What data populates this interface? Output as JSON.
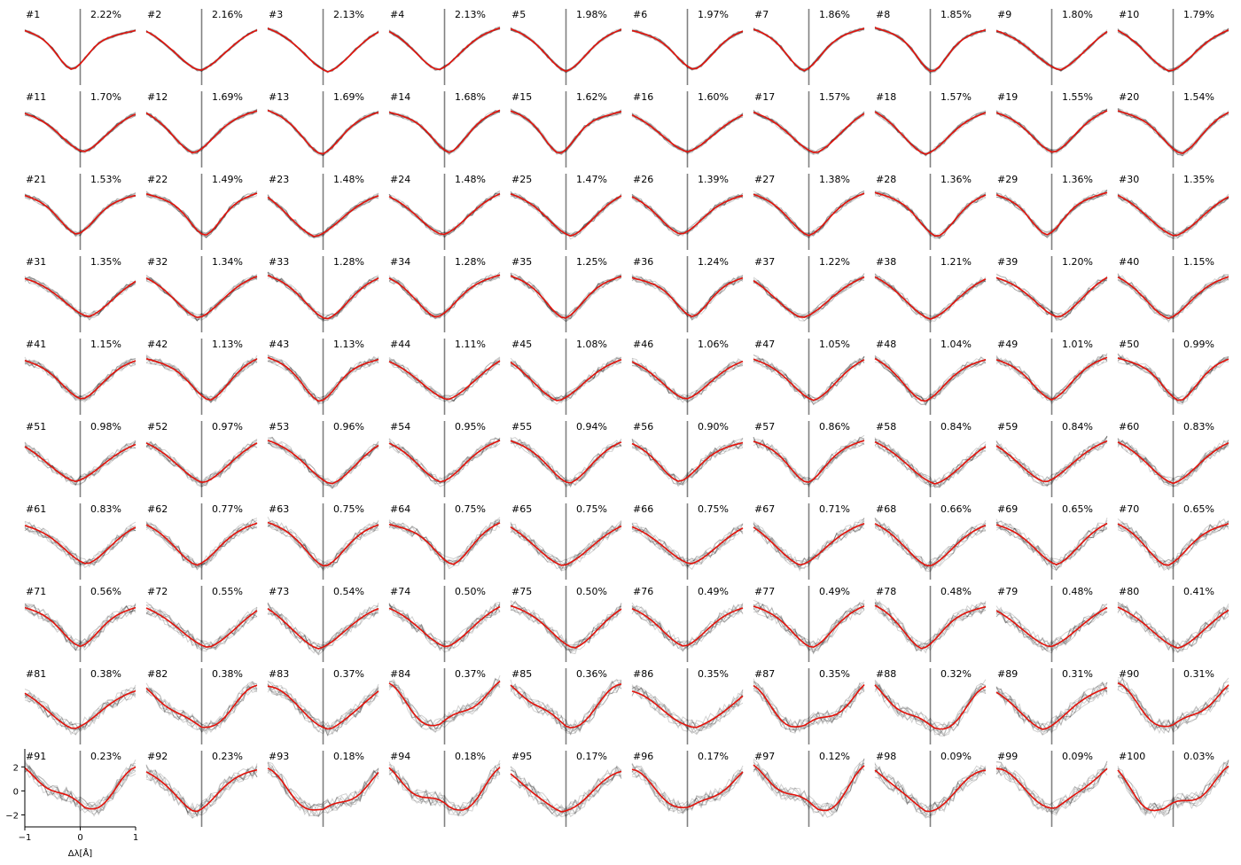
{
  "chart_data": {
    "type": "line",
    "layout": "small-multiples grid, 10 rows x 10 columns",
    "xlabel": "Δλ[Å]",
    "ylabel": "",
    "xlim": [
      -1,
      1
    ],
    "ylim": [
      -3,
      3.5
    ],
    "x_ticks": [
      "−1",
      "0",
      "1"
    ],
    "y_ticks": [
      "−2",
      "0",
      "2"
    ],
    "axes_shown_on_panel": "#91",
    "colors": {
      "mean_profile": "#e3120b",
      "member_profiles": "#000000",
      "center_line": "#808080"
    },
    "panels": [
      {
        "id": "#1",
        "pct": "2.22%"
      },
      {
        "id": "#2",
        "pct": "2.16%"
      },
      {
        "id": "#3",
        "pct": "2.13%"
      },
      {
        "id": "#4",
        "pct": "2.13%"
      },
      {
        "id": "#5",
        "pct": "1.98%"
      },
      {
        "id": "#6",
        "pct": "1.97%"
      },
      {
        "id": "#7",
        "pct": "1.86%"
      },
      {
        "id": "#8",
        "pct": "1.85%"
      },
      {
        "id": "#9",
        "pct": "1.80%"
      },
      {
        "id": "#10",
        "pct": "1.79%"
      },
      {
        "id": "#11",
        "pct": "1.70%"
      },
      {
        "id": "#12",
        "pct": "1.69%"
      },
      {
        "id": "#13",
        "pct": "1.69%"
      },
      {
        "id": "#14",
        "pct": "1.68%"
      },
      {
        "id": "#15",
        "pct": "1.62%"
      },
      {
        "id": "#16",
        "pct": "1.60%"
      },
      {
        "id": "#17",
        "pct": "1.57%"
      },
      {
        "id": "#18",
        "pct": "1.57%"
      },
      {
        "id": "#19",
        "pct": "1.55%"
      },
      {
        "id": "#20",
        "pct": "1.54%"
      },
      {
        "id": "#21",
        "pct": "1.53%"
      },
      {
        "id": "#22",
        "pct": "1.49%"
      },
      {
        "id": "#23",
        "pct": "1.48%"
      },
      {
        "id": "#24",
        "pct": "1.48%"
      },
      {
        "id": "#25",
        "pct": "1.47%"
      },
      {
        "id": "#26",
        "pct": "1.39%"
      },
      {
        "id": "#27",
        "pct": "1.38%"
      },
      {
        "id": "#28",
        "pct": "1.36%"
      },
      {
        "id": "#29",
        "pct": "1.36%"
      },
      {
        "id": "#30",
        "pct": "1.35%"
      },
      {
        "id": "#31",
        "pct": "1.35%"
      },
      {
        "id": "#32",
        "pct": "1.34%"
      },
      {
        "id": "#33",
        "pct": "1.28%"
      },
      {
        "id": "#34",
        "pct": "1.28%"
      },
      {
        "id": "#35",
        "pct": "1.25%"
      },
      {
        "id": "#36",
        "pct": "1.24%"
      },
      {
        "id": "#37",
        "pct": "1.22%"
      },
      {
        "id": "#38",
        "pct": "1.21%"
      },
      {
        "id": "#39",
        "pct": "1.20%"
      },
      {
        "id": "#40",
        "pct": "1.15%"
      },
      {
        "id": "#41",
        "pct": "1.15%"
      },
      {
        "id": "#42",
        "pct": "1.13%"
      },
      {
        "id": "#43",
        "pct": "1.13%"
      },
      {
        "id": "#44",
        "pct": "1.11%"
      },
      {
        "id": "#45",
        "pct": "1.08%"
      },
      {
        "id": "#46",
        "pct": "1.06%"
      },
      {
        "id": "#47",
        "pct": "1.05%"
      },
      {
        "id": "#48",
        "pct": "1.04%"
      },
      {
        "id": "#49",
        "pct": "1.01%"
      },
      {
        "id": "#50",
        "pct": "0.99%"
      },
      {
        "id": "#51",
        "pct": "0.98%"
      },
      {
        "id": "#52",
        "pct": "0.97%"
      },
      {
        "id": "#53",
        "pct": "0.96%"
      },
      {
        "id": "#54",
        "pct": "0.95%"
      },
      {
        "id": "#55",
        "pct": "0.94%"
      },
      {
        "id": "#56",
        "pct": "0.90%"
      },
      {
        "id": "#57",
        "pct": "0.86%"
      },
      {
        "id": "#58",
        "pct": "0.84%"
      },
      {
        "id": "#59",
        "pct": "0.84%"
      },
      {
        "id": "#60",
        "pct": "0.83%"
      },
      {
        "id": "#61",
        "pct": "0.83%"
      },
      {
        "id": "#62",
        "pct": "0.77%"
      },
      {
        "id": "#63",
        "pct": "0.75%"
      },
      {
        "id": "#64",
        "pct": "0.75%"
      },
      {
        "id": "#65",
        "pct": "0.75%"
      },
      {
        "id": "#66",
        "pct": "0.75%"
      },
      {
        "id": "#67",
        "pct": "0.71%"
      },
      {
        "id": "#68",
        "pct": "0.66%"
      },
      {
        "id": "#69",
        "pct": "0.65%"
      },
      {
        "id": "#70",
        "pct": "0.65%"
      },
      {
        "id": "#71",
        "pct": "0.56%"
      },
      {
        "id": "#72",
        "pct": "0.55%"
      },
      {
        "id": "#73",
        "pct": "0.54%"
      },
      {
        "id": "#74",
        "pct": "0.50%"
      },
      {
        "id": "#75",
        "pct": "0.50%"
      },
      {
        "id": "#76",
        "pct": "0.49%"
      },
      {
        "id": "#77",
        "pct": "0.49%"
      },
      {
        "id": "#78",
        "pct": "0.48%"
      },
      {
        "id": "#79",
        "pct": "0.48%"
      },
      {
        "id": "#80",
        "pct": "0.41%"
      },
      {
        "id": "#81",
        "pct": "0.38%"
      },
      {
        "id": "#82",
        "pct": "0.38%"
      },
      {
        "id": "#83",
        "pct": "0.37%"
      },
      {
        "id": "#84",
        "pct": "0.37%"
      },
      {
        "id": "#85",
        "pct": "0.36%"
      },
      {
        "id": "#86",
        "pct": "0.35%"
      },
      {
        "id": "#87",
        "pct": "0.35%"
      },
      {
        "id": "#88",
        "pct": "0.32%"
      },
      {
        "id": "#89",
        "pct": "0.31%"
      },
      {
        "id": "#90",
        "pct": "0.31%"
      },
      {
        "id": "#91",
        "pct": "0.23%"
      },
      {
        "id": "#92",
        "pct": "0.23%"
      },
      {
        "id": "#93",
        "pct": "0.18%"
      },
      {
        "id": "#94",
        "pct": "0.18%"
      },
      {
        "id": "#95",
        "pct": "0.17%"
      },
      {
        "id": "#96",
        "pct": "0.17%"
      },
      {
        "id": "#97",
        "pct": "0.12%"
      },
      {
        "id": "#98",
        "pct": "0.09%"
      },
      {
        "id": "#99",
        "pct": "0.09%"
      },
      {
        "id": "#100",
        "pct": "0.03%"
      }
    ]
  }
}
